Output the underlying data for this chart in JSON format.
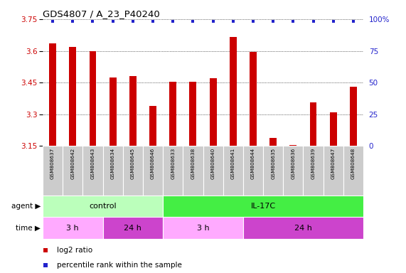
{
  "title": "GDS4807 / A_23_P40240",
  "samples": [
    "GSM808637",
    "GSM808642",
    "GSM808643",
    "GSM808634",
    "GSM808645",
    "GSM808646",
    "GSM808633",
    "GSM808638",
    "GSM808640",
    "GSM808641",
    "GSM808644",
    "GSM808635",
    "GSM808636",
    "GSM808639",
    "GSM808647",
    "GSM808648"
  ],
  "log2_values": [
    3.635,
    3.62,
    3.6,
    3.475,
    3.48,
    3.34,
    3.455,
    3.455,
    3.47,
    3.665,
    3.595,
    3.19,
    3.155,
    3.355,
    3.31,
    3.43
  ],
  "percentile_dots": [
    true,
    true,
    true,
    true,
    true,
    true,
    true,
    true,
    true,
    true,
    true,
    true,
    true,
    true,
    true,
    true
  ],
  "ymin": 3.15,
  "ymax": 3.75,
  "yticks": [
    3.15,
    3.3,
    3.45,
    3.6,
    3.75
  ],
  "ytick_labels": [
    "3.15",
    "3.3",
    "3.45",
    "3.6",
    "3.75"
  ],
  "right_yticks": [
    0,
    25,
    50,
    75,
    100
  ],
  "right_ytick_labels": [
    "0",
    "25",
    "50",
    "75",
    "100%"
  ],
  "bar_color": "#cc0000",
  "dot_color": "#2222cc",
  "agent_control_color": "#bbffbb",
  "agent_il17c_color": "#44ee44",
  "time_3h_color": "#ffaaff",
  "time_24h_color": "#cc44cc",
  "bg_color": "#ffffff",
  "sample_bg_color": "#cccccc",
  "agent_groups": [
    {
      "label": "control",
      "start": 0,
      "end": 6
    },
    {
      "label": "IL-17C",
      "start": 6,
      "end": 16
    }
  ],
  "time_groups": [
    {
      "label": "3 h",
      "start": 0,
      "end": 3,
      "color": "#ffaaff"
    },
    {
      "label": "24 h",
      "start": 3,
      "end": 6,
      "color": "#cc44cc"
    },
    {
      "label": "3 h",
      "start": 6,
      "end": 10,
      "color": "#ffaaff"
    },
    {
      "label": "24 h",
      "start": 10,
      "end": 16,
      "color": "#cc44cc"
    }
  ],
  "legend_items": [
    {
      "color": "#cc0000",
      "label": "log2 ratio"
    },
    {
      "color": "#2222cc",
      "label": "percentile rank within the sample"
    }
  ]
}
